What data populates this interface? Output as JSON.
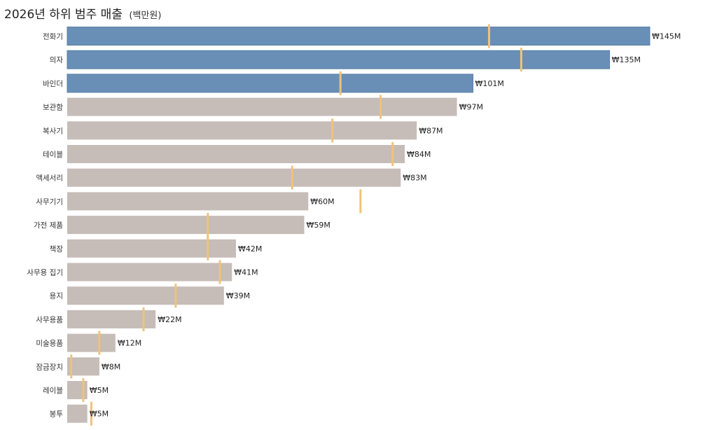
{
  "chart_data": {
    "type": "bar",
    "orientation": "horizontal",
    "title": "2026년 하위 범주 매출",
    "subtitle": "(백만원)",
    "categories": [
      "전화기",
      "의자",
      "바인더",
      "보관함",
      "복사기",
      "테이블",
      "액세서리",
      "사무기기",
      "가전 제품",
      "책장",
      "사무용 집기",
      "용지",
      "사무용품",
      "미술용품",
      "잠금장치",
      "레이블",
      "봉투"
    ],
    "values": [
      145,
      135,
      101,
      97,
      87,
      84,
      83,
      60,
      59,
      42,
      41,
      39,
      22,
      12,
      8,
      5,
      5
    ],
    "value_labels": [
      "₩145M",
      "₩135M",
      "₩101M",
      "₩97M",
      "₩87M",
      "₩84M",
      "₩83M",
      "₩60M",
      "₩59M",
      "₩42M",
      "₩41M",
      "₩39M",
      "₩22M",
      "₩12M",
      "₩8M",
      "₩5M",
      "₩5M"
    ],
    "reference_values": [
      105,
      113,
      68,
      78,
      66,
      81,
      56,
      73,
      35,
      35,
      38,
      27,
      19,
      8,
      1,
      4,
      6
    ],
    "highlight_count": 3,
    "xlim": [
      0,
      145
    ],
    "grid": false,
    "legend": "none",
    "colors": {
      "highlight": "#6a8fb7",
      "default": "#c6bcb8",
      "reference": "#efc37a",
      "highlight_border": "#5a7fa6"
    }
  }
}
